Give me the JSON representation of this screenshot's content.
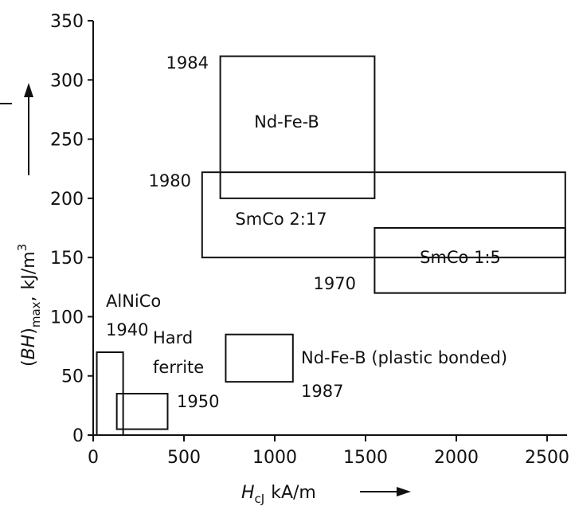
{
  "chart_data": {
    "type": "box-regions",
    "xlabel": {
      "text": "H",
      "sub": "cJ",
      "unit": "kA/m"
    },
    "ylabel": {
      "pre": "(",
      "var": "BH",
      "post": ")",
      "sub": "max",
      "unit": "kJ/m",
      "sup": "3"
    },
    "xlim": [
      0,
      2700
    ],
    "ylim": [
      0,
      350
    ],
    "xticks": [
      "0",
      "500",
      "1000",
      "1500",
      "2000",
      "2500"
    ],
    "yticks": [
      "0",
      "50",
      "100",
      "150",
      "200",
      "250",
      "300",
      "350"
    ],
    "grid": false,
    "regions": [
      {
        "name": "Nd-Fe-B",
        "year": "1984",
        "x": [
          700,
          1550
        ],
        "y": [
          200,
          320
        ]
      },
      {
        "name": "SmCo 2:17",
        "year": "1980",
        "x": [
          600,
          2600
        ],
        "y": [
          150,
          222
        ]
      },
      {
        "name": "SmCo 1:5",
        "year": "1970",
        "x": [
          1550,
          2600
        ],
        "y": [
          120,
          175
        ]
      },
      {
        "name": "AlNiCo",
        "year": "1940",
        "x": [
          20,
          165
        ],
        "y": [
          0,
          70
        ]
      },
      {
        "name": "Hard ferrite",
        "year": "1950",
        "x": [
          130,
          410
        ],
        "y": [
          5,
          35
        ]
      },
      {
        "name": "Nd-Fe-B (plastic bonded)",
        "year": "1987",
        "x": [
          730,
          1100
        ],
        "y": [
          45,
          85
        ]
      }
    ]
  }
}
